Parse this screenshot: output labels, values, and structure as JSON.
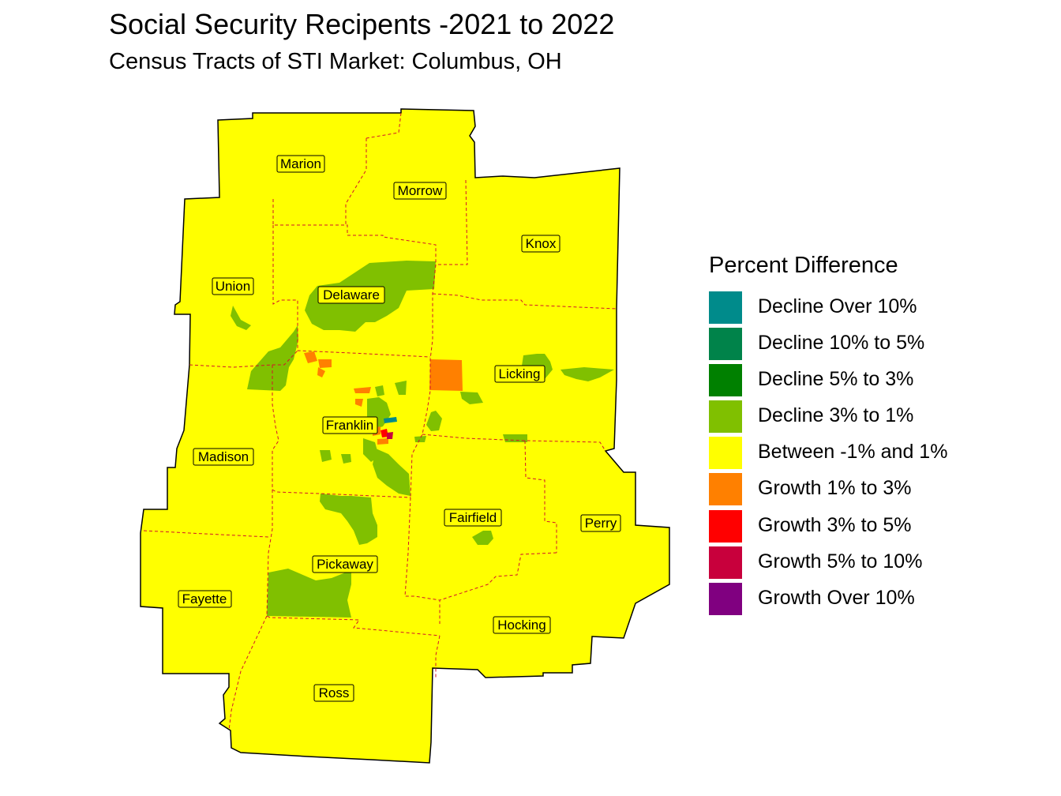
{
  "title": "Social Security Recipents -2021 to 2022",
  "subtitle": "Census Tracts of STI Market: Columbus, OH",
  "legend": {
    "title": "Percent Difference",
    "items": [
      {
        "label": "Decline Over 10%",
        "color": "#008B8B"
      },
      {
        "label": "Decline 10% to 5%",
        "color": "#00834A"
      },
      {
        "label": "Decline 5% to 3%",
        "color": "#008000"
      },
      {
        "label": "Decline 3% to 1%",
        "color": "#80C000"
      },
      {
        "label": "Between -1% and 1%",
        "color": "#FFFF00"
      },
      {
        "label": "Growth 1% to 3%",
        "color": "#FF8000"
      },
      {
        "label": "Growth 3% to 5%",
        "color": "#FF0000"
      },
      {
        "label": "Growth 5% to 10%",
        "color": "#C8003C"
      },
      {
        "label": "Growth Over 10%",
        "color": "#800080"
      }
    ]
  },
  "counties": [
    "Marion",
    "Morrow",
    "Knox",
    "Union",
    "Delaware",
    "Licking",
    "Franklin",
    "Madison",
    "Fairfield",
    "Perry",
    "Pickaway",
    "Fayette",
    "Hocking",
    "Ross"
  ],
  "colors": {
    "base": "#FFFF00",
    "border": "#000000",
    "county_border": "#D2142A"
  }
}
